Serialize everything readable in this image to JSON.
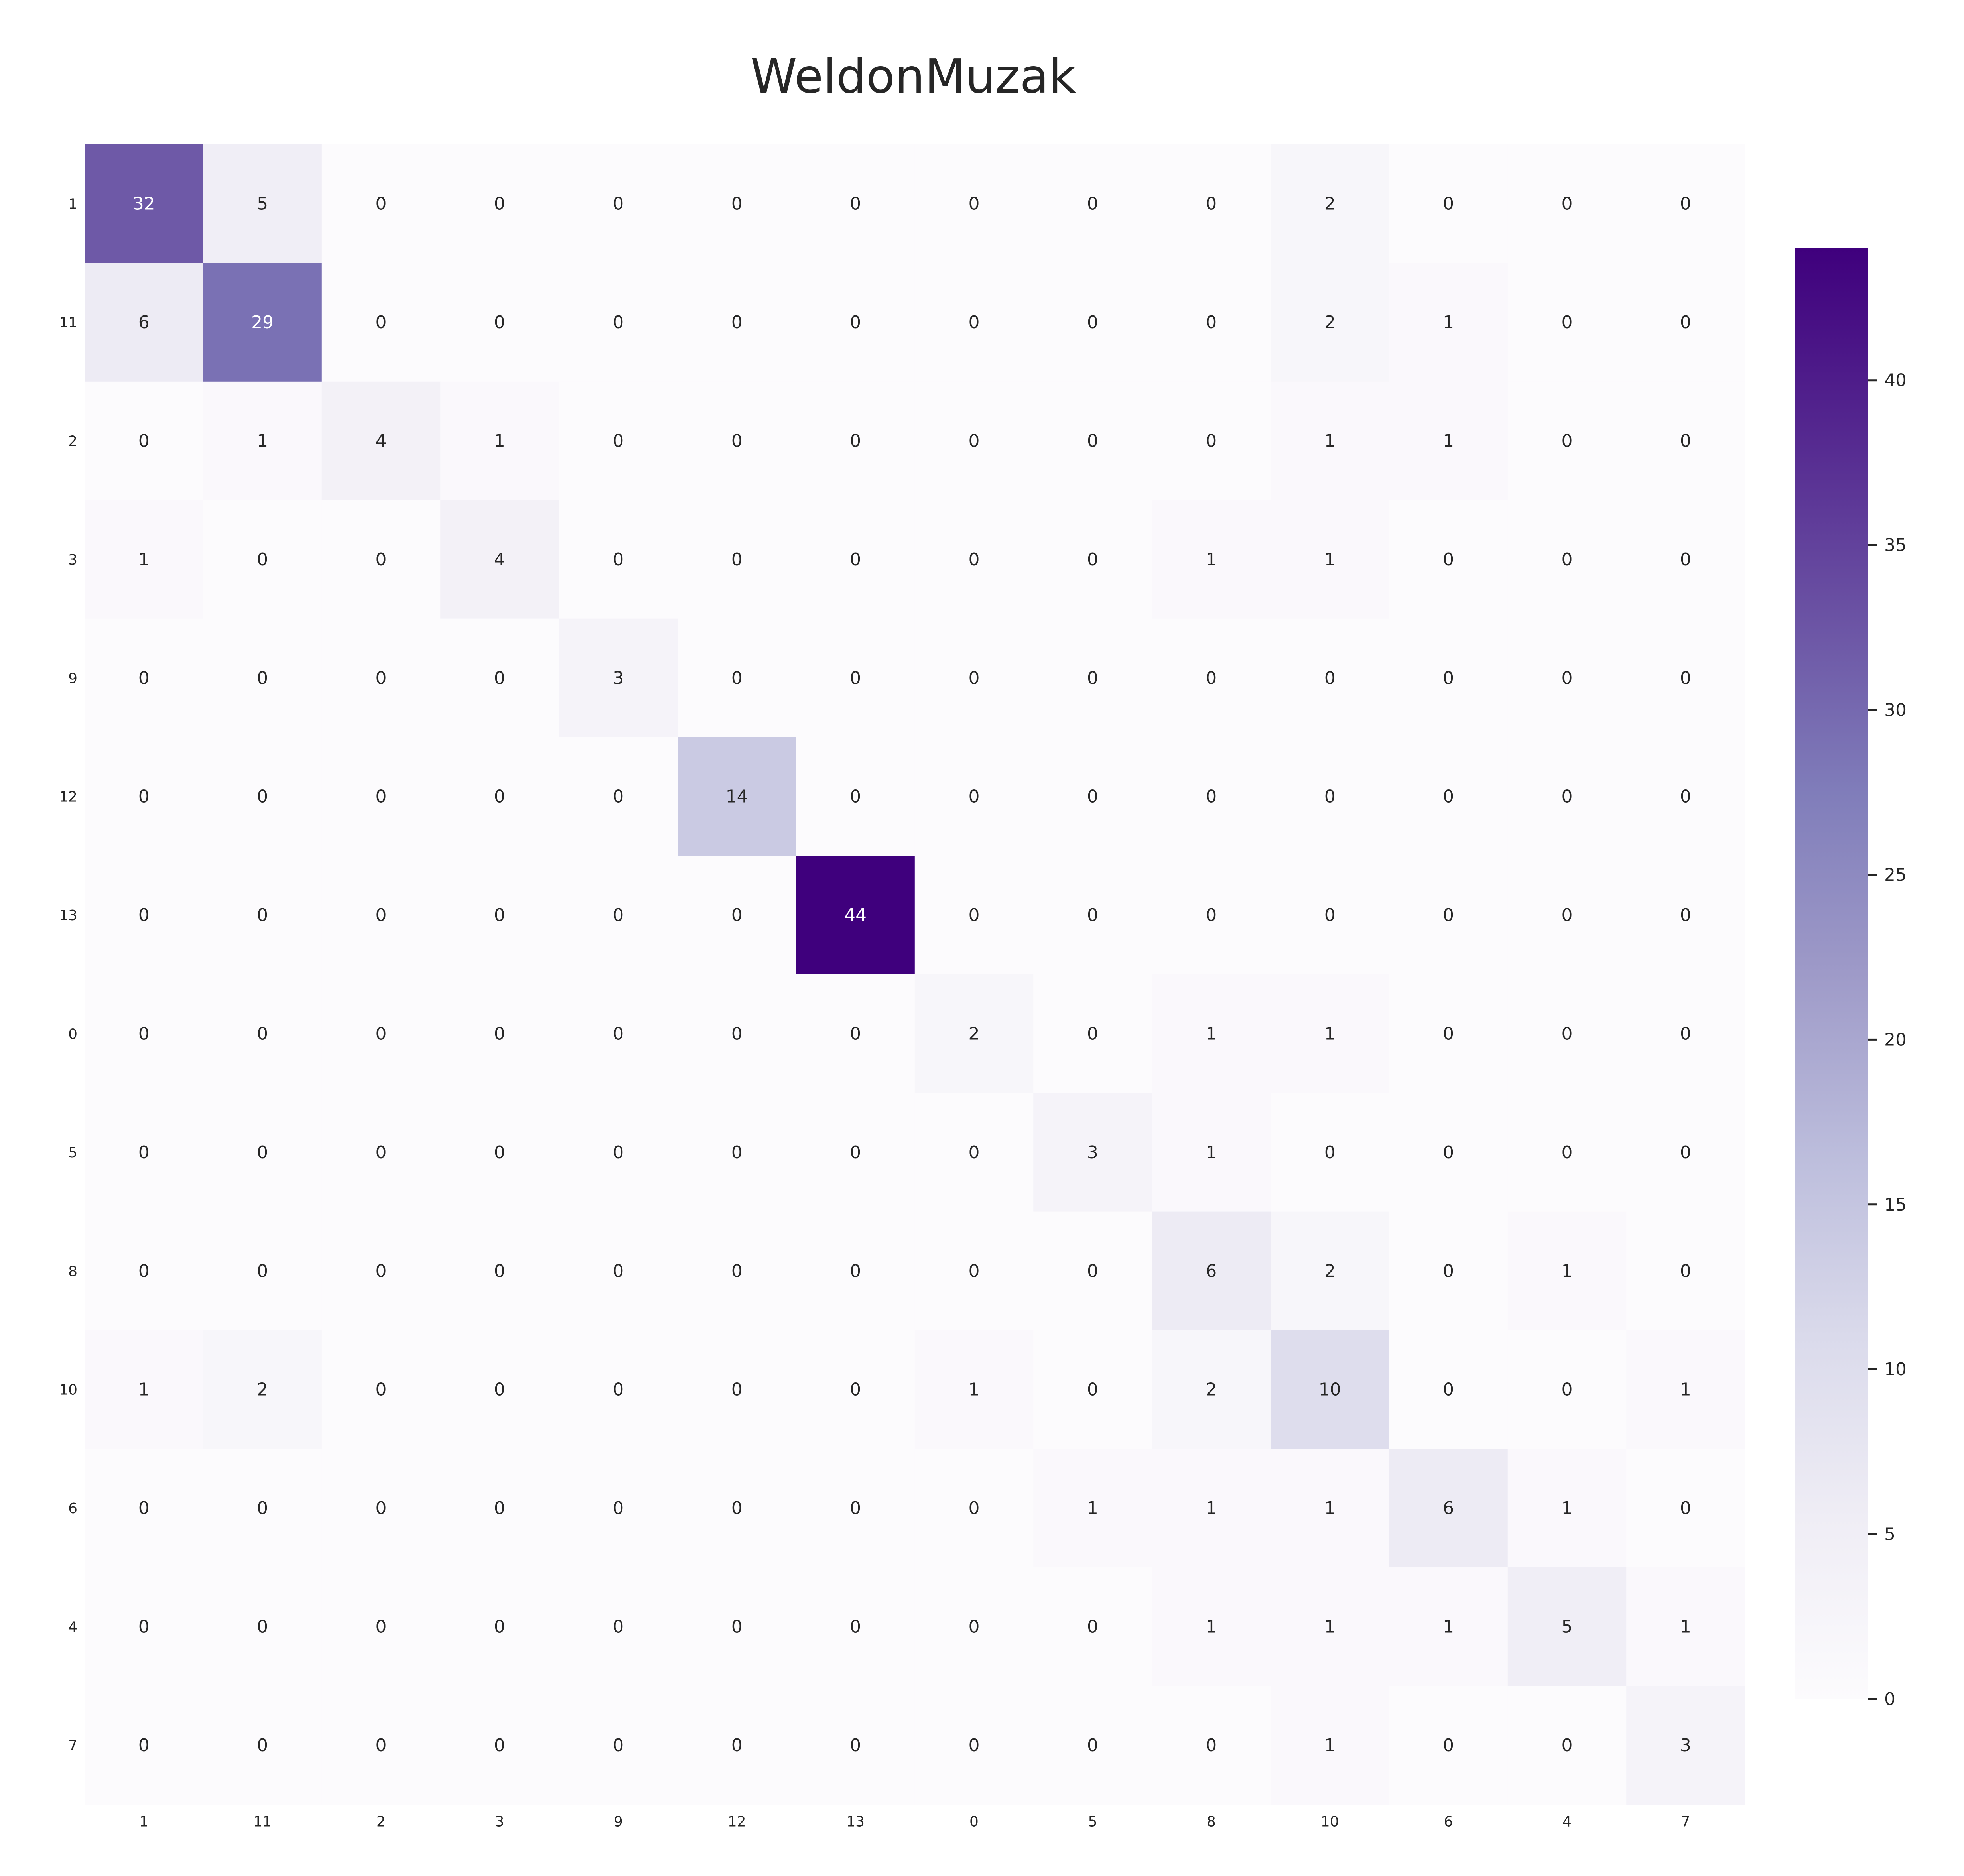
{
  "chart_data": {
    "type": "heatmap",
    "title": "WeldonMuzak",
    "row_labels": [
      "1",
      "11",
      "2",
      "3",
      "9",
      "12",
      "13",
      "0",
      "5",
      "8",
      "10",
      "6",
      "4",
      "7"
    ],
    "col_labels": [
      "1",
      "11",
      "2",
      "3",
      "9",
      "12",
      "13",
      "0",
      "5",
      "8",
      "10",
      "6",
      "4",
      "7"
    ],
    "values": [
      [
        32,
        5,
        0,
        0,
        0,
        0,
        0,
        0,
        0,
        0,
        2,
        0,
        0,
        0
      ],
      [
        6,
        29,
        0,
        0,
        0,
        0,
        0,
        0,
        0,
        0,
        2,
        1,
        0,
        0
      ],
      [
        0,
        1,
        4,
        1,
        0,
        0,
        0,
        0,
        0,
        0,
        1,
        1,
        0,
        0
      ],
      [
        1,
        0,
        0,
        4,
        0,
        0,
        0,
        0,
        0,
        1,
        1,
        0,
        0,
        0
      ],
      [
        0,
        0,
        0,
        0,
        3,
        0,
        0,
        0,
        0,
        0,
        0,
        0,
        0,
        0
      ],
      [
        0,
        0,
        0,
        0,
        0,
        14,
        0,
        0,
        0,
        0,
        0,
        0,
        0,
        0
      ],
      [
        0,
        0,
        0,
        0,
        0,
        0,
        44,
        0,
        0,
        0,
        0,
        0,
        0,
        0
      ],
      [
        0,
        0,
        0,
        0,
        0,
        0,
        0,
        2,
        0,
        1,
        1,
        0,
        0,
        0
      ],
      [
        0,
        0,
        0,
        0,
        0,
        0,
        0,
        0,
        3,
        1,
        0,
        0,
        0,
        0
      ],
      [
        0,
        0,
        0,
        0,
        0,
        0,
        0,
        0,
        0,
        6,
        2,
        0,
        1,
        0
      ],
      [
        1,
        2,
        0,
        0,
        0,
        0,
        0,
        1,
        0,
        2,
        10,
        0,
        0,
        1
      ],
      [
        0,
        0,
        0,
        0,
        0,
        0,
        0,
        0,
        1,
        1,
        1,
        6,
        1,
        0
      ],
      [
        0,
        0,
        0,
        0,
        0,
        0,
        0,
        0,
        0,
        1,
        1,
        1,
        5,
        1
      ],
      [
        0,
        0,
        0,
        0,
        0,
        0,
        0,
        0,
        0,
        0,
        1,
        0,
        0,
        3
      ]
    ],
    "vmin": 0,
    "vmax": 44,
    "colormap": "Purples",
    "colorbar_ticks": [
      0,
      5,
      10,
      15,
      20,
      25,
      30,
      35,
      40
    ],
    "colorbar_placement": "right",
    "annotated": true,
    "grid": false
  },
  "colors": {
    "text_dark": "#262626",
    "text_light": "#ffffff",
    "cmap_stops": [
      "#fcfbfd",
      "#efedf5",
      "#dadaeb",
      "#bcbddc",
      "#9e9ac8",
      "#807dba",
      "#6a51a3",
      "#54278f",
      "#3f007d"
    ]
  }
}
